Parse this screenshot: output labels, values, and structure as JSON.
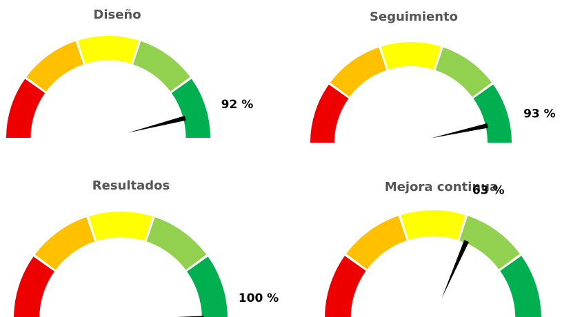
{
  "chart_data": [
    {
      "type": "gauge",
      "title": "Diseño",
      "values": [
        92
      ],
      "value_labels": [
        "92 %"
      ],
      "ylim": [
        0,
        100
      ],
      "colors": [
        "#ee0000",
        "#ffc000",
        "#ffff00",
        "#92d050",
        "#00b050"
      ]
    },
    {
      "type": "gauge",
      "title": "Seguimiento",
      "values": [
        93
      ],
      "value_labels": [
        "93 %"
      ],
      "ylim": [
        0,
        100
      ],
      "colors": [
        "#ee0000",
        "#ffc000",
        "#ffff00",
        "#92d050",
        "#00b050"
      ]
    },
    {
      "type": "gauge",
      "title": "Resultados",
      "values": [
        100
      ],
      "value_labels": [
        "100 %"
      ],
      "ylim": [
        0,
        100
      ],
      "colors": [
        "#ee0000",
        "#ffc000",
        "#ffff00",
        "#92d050",
        "#00b050"
      ]
    },
    {
      "type": "gauge",
      "title": "Mejora continua",
      "values": [
        63
      ],
      "value_labels": [
        "63 %"
      ],
      "ylim": [
        0,
        100
      ],
      "colors": [
        "#ee0000",
        "#ffc000",
        "#ffff00",
        "#92d050",
        "#00b050"
      ]
    }
  ]
}
